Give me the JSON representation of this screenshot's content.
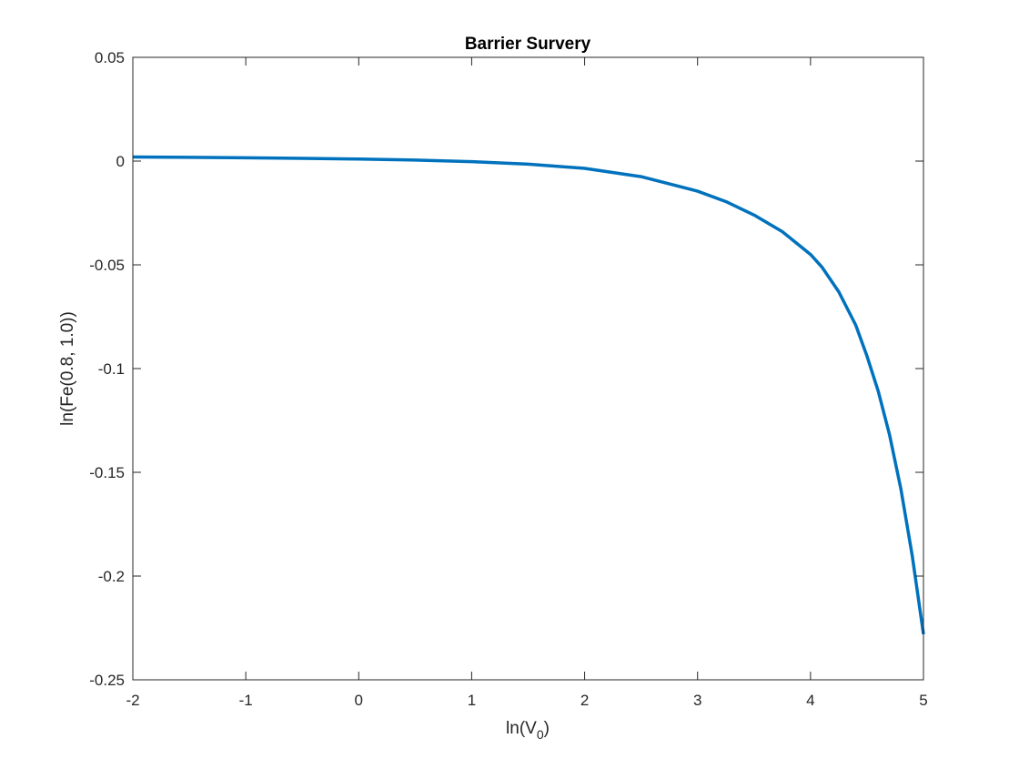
{
  "chart_data": {
    "type": "line",
    "title": "Barrier Survery",
    "xlabel": "ln(V",
    "xlabel_subscript": "0",
    "xlabel_suffix": ")",
    "ylabel": "ln(Fe(0.8, 1.0))",
    "xlim": [
      -2,
      5
    ],
    "ylim": [
      -0.25,
      0.05
    ],
    "xticks": [
      -2,
      -1,
      0,
      1,
      2,
      3,
      4,
      5
    ],
    "xtick_labels": [
      "-2",
      "-1",
      "0",
      "1",
      "2",
      "3",
      "4",
      "5"
    ],
    "yticks": [
      0.05,
      0,
      -0.05,
      -0.1,
      -0.15,
      -0.2,
      -0.25
    ],
    "ytick_labels": [
      "0.05",
      "0",
      "-0.05",
      "-0.1",
      "-0.15",
      "-0.2",
      "-0.25"
    ],
    "grid": false,
    "box": true,
    "series": [
      {
        "color": "#0072bd",
        "x": [
          -2,
          -1.5,
          -1,
          -0.5,
          0,
          0.5,
          1,
          1.5,
          2,
          2.5,
          3,
          3.25,
          3.5,
          3.75,
          4,
          4.1,
          4.25,
          4.4,
          4.5,
          4.6,
          4.7,
          4.8,
          4.9,
          5
        ],
        "y": [
          0.002,
          0.0018,
          0.0016,
          0.0013,
          0.001,
          0.0005,
          -0.0003,
          -0.0015,
          -0.0035,
          -0.0075,
          -0.0145,
          -0.0195,
          -0.026,
          -0.034,
          -0.045,
          -0.051,
          -0.063,
          -0.079,
          -0.094,
          -0.111,
          -0.132,
          -0.158,
          -0.19,
          -0.228
        ]
      }
    ]
  }
}
